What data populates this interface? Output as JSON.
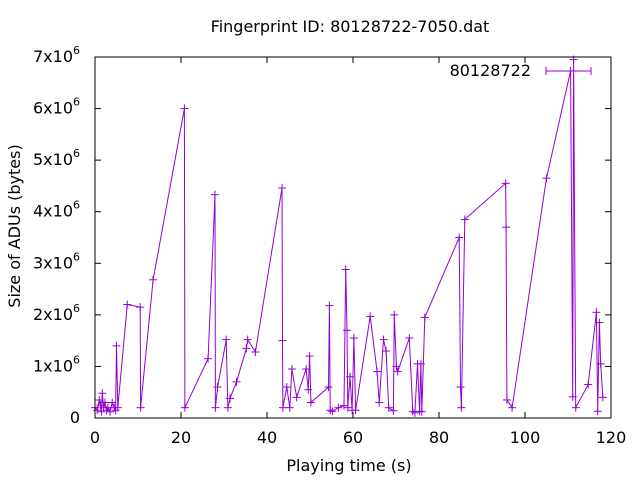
{
  "chart_data": {
    "type": "line",
    "title": "Fingerprint ID: 80128722-7050.dat",
    "xlabel": "Playing time (s)",
    "ylabel": "Size of ADUs (bytes)",
    "xlim": [
      0,
      120
    ],
    "ylim": [
      0,
      7000000
    ],
    "xticks": [
      0,
      20,
      40,
      60,
      80,
      100,
      120
    ],
    "yticks": [
      {
        "value": 0,
        "mant": "0",
        "exp": ""
      },
      {
        "value": 1000000,
        "mant": "1x10",
        "exp": "6"
      },
      {
        "value": 2000000,
        "mant": "2x10",
        "exp": "6"
      },
      {
        "value": 3000000,
        "mant": "3x10",
        "exp": "6"
      },
      {
        "value": 4000000,
        "mant": "4x10",
        "exp": "6"
      },
      {
        "value": 5000000,
        "mant": "5x10",
        "exp": "6"
      },
      {
        "value": 6000000,
        "mant": "6x10",
        "exp": "6"
      },
      {
        "value": 7000000,
        "mant": "7x10",
        "exp": "6"
      }
    ],
    "grid": false,
    "legend_position": "top-right",
    "series": [
      {
        "name": "80128722",
        "color": "#9400d3",
        "marker": "plus",
        "x": [
          0.0,
          0.5,
          1.0,
          1.3,
          1.5,
          1.7,
          2.0,
          2.3,
          2.7,
          3.0,
          3.5,
          4.0,
          4.5,
          4.8,
          5.0,
          5.3,
          7.5,
          10.5,
          10.6,
          13.5,
          20.8,
          20.9,
          26.3,
          27.9,
          28.0,
          28.5,
          30.5,
          30.9,
          31.4,
          32.9,
          35.2,
          35.5,
          37.3,
          43.5,
          43.6,
          43.7,
          44.6,
          45.3,
          45.8,
          46.9,
          49.1,
          49.6,
          49.9,
          50.2,
          54.3,
          54.5,
          54.7,
          55.2,
          56.6,
          57.9,
          58.3,
          58.6,
          58.8,
          59.3,
          59.8,
          60.2,
          60.6,
          64.0,
          65.6,
          66.1,
          67.1,
          67.7,
          68.3,
          69.4,
          69.6,
          70.1,
          70.4,
          73.1,
          73.9,
          74.4,
          75.0,
          75.5,
          75.8,
          76.0,
          76.7,
          84.7,
          85.0,
          85.2,
          86.0,
          95.5,
          95.6,
          95.8,
          97.0,
          105.0,
          110.6,
          111.1,
          111.3,
          111.8,
          114.7,
          116.6,
          116.9,
          117.3,
          117.6,
          118.1
        ],
        "y": [
          200000,
          150000,
          350000,
          250000,
          120000,
          480000,
          200000,
          300000,
          150000,
          200000,
          120000,
          300000,
          200000,
          150000,
          1400000,
          200000,
          2200000,
          2150000,
          200000,
          2680000,
          6000000,
          200000,
          1150000,
          4330000,
          200000,
          600000,
          1520000,
          200000,
          380000,
          700000,
          1350000,
          1520000,
          1280000,
          4460000,
          1500000,
          200000,
          600000,
          200000,
          950000,
          400000,
          950000,
          550000,
          1200000,
          300000,
          600000,
          2180000,
          150000,
          130000,
          200000,
          240000,
          2880000,
          1700000,
          200000,
          800000,
          150000,
          1550000,
          150000,
          1970000,
          900000,
          300000,
          1520000,
          1300000,
          200000,
          140000,
          2000000,
          1000000,
          900000,
          1550000,
          130000,
          100000,
          1050000,
          130000,
          1050000,
          120000,
          1950000,
          3500000,
          600000,
          200000,
          3850000,
          4550000,
          3700000,
          350000,
          200000,
          4650000,
          6730000,
          410000,
          6950000,
          200000,
          650000,
          2050000,
          130000,
          1850000,
          1050000,
          400000
        ]
      }
    ]
  }
}
